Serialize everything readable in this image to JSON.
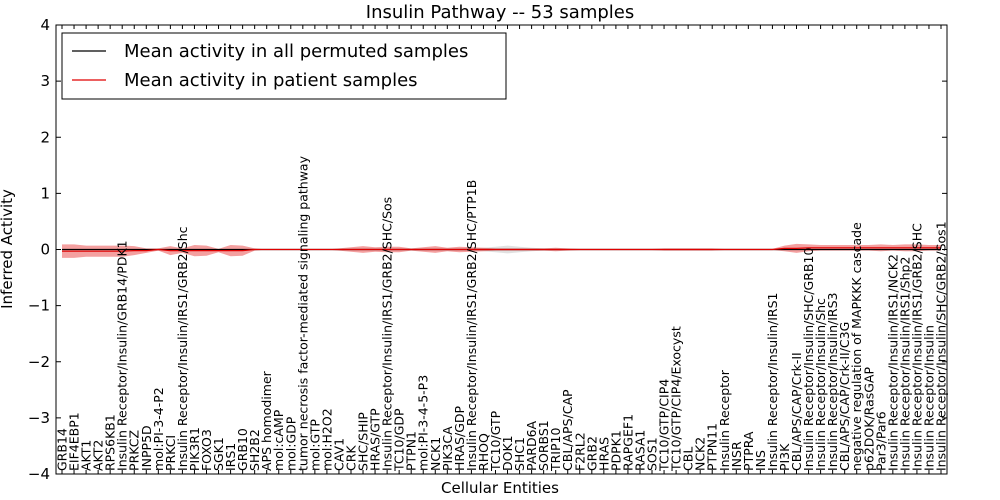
{
  "chart_data": {
    "type": "line",
    "title": "Insulin Pathway -- 53 samples",
    "xlabel": "Cellular Entities",
    "ylabel": "Inferred Activity",
    "ylim": [
      -4,
      4
    ],
    "yticks": [
      -4,
      -3,
      -2,
      -1,
      0,
      1,
      2,
      3,
      4
    ],
    "grid": false,
    "legend_position": "top-left",
    "categories": [
      "GRB14",
      "EIF4EBP1",
      "AKT1",
      "AKT2",
      "RPS6KB1",
      "Insulin Receptor/Insulin/GRB14/PDK1",
      "PRKCZ",
      "INPP5D",
      "mol:PI-3-4-P2",
      "PRKCI",
      "Insulin Receptor/Insulin/IRS1/GRB2/Shc",
      "PIK3R1",
      "FOXO3",
      "SGK1",
      "IRS1",
      "GRB10",
      "SH2B2",
      "APS homodimer",
      "mol:cAMP",
      "mol:GDP",
      "tumor necrosis factor-mediated signaling pathway",
      "mol:GTP",
      "mol:H2O2",
      "CAV1",
      "CRK",
      "SHC/SHIP",
      "HRAS/GTP",
      "Insulin Receptor/Insulin/IRS1/GRB2/SHC/Sos",
      "TC10/GDP",
      "PTPN1",
      "mol:PI-3-4-5-P3",
      "NCK1",
      "PIK3CA",
      "HRAS/GDP",
      "Insulin Receptor/Insulin/IRS1/GRB2/SHC/PTP1B",
      "RHOQ",
      "TC10/GTP",
      "DOK1",
      "SHC1",
      "PARD6A",
      "SORBS1",
      "TRIP10",
      "CBL/APS/CAP",
      "F2RL2",
      "GRB2",
      "HRAS",
      "PDPK1",
      "RAPGEF1",
      "RASA1",
      "SOS1",
      "TC10/GTP/CIP4",
      "TC10/GTP/CIP4/Exocyst",
      "CBL",
      "NCK2",
      "PTPN11",
      "Insulin Receptor",
      "INSR",
      "PTPRA",
      "INS",
      "Insulin Receptor/Insulin/IRS1",
      "PI3K",
      "CBL/APS/CAP/Crk-II",
      "Insulin Receptor/Insulin/SHC/GRB10",
      "Insulin Receptor/Insulin/Shc",
      "Insulin Receptor/Insulin/IRS3",
      "CBL/APS/CAP/Crk-II/C3G",
      "negative regulation of MAPKKK cascade",
      "p62DOK/RasGAP",
      "Par3/Par6",
      "Insulin Receptor/Insulin/IRS1/NCK2",
      "Insulin Receptor/Insulin/IRS1/Shp2",
      "Insulin Receptor/Insulin/IRS1/GRB2/SHC",
      "Insulin Receptor/Insulin",
      "Insulin Receptor/Insulin/SHC/GRB2/Sos1"
    ],
    "series": [
      {
        "name": "Mean activity in all permuted samples",
        "color": "#000000",
        "band_color": "#c8c8c8",
        "values": [
          0,
          0,
          0,
          0,
          0,
          0,
          0,
          0,
          0,
          0,
          0,
          0,
          0,
          0,
          0,
          0,
          0,
          0,
          0,
          0,
          0,
          0,
          0,
          0,
          0,
          0,
          0,
          0,
          0,
          0,
          0,
          0,
          0,
          0,
          0,
          0,
          0,
          0,
          0,
          0,
          0,
          0,
          0,
          0,
          0,
          0,
          0,
          0,
          0,
          0,
          0,
          0,
          0,
          0,
          0,
          0,
          0,
          0,
          0,
          0,
          0,
          0,
          0,
          0,
          0,
          0,
          0,
          0,
          0,
          0,
          0,
          0,
          0,
          0
        ],
        "spread": [
          0,
          0,
          0,
          0,
          0,
          0,
          0,
          0,
          0,
          0,
          0,
          0,
          0,
          0,
          0,
          0,
          0,
          0,
          0,
          0,
          0,
          0,
          0,
          0,
          0,
          0,
          0,
          0,
          0,
          0,
          0,
          0,
          0,
          0,
          0.02,
          0.03,
          0.05,
          0.07,
          0.05,
          0.03,
          0.02,
          0,
          0,
          0,
          0,
          0,
          0,
          0,
          0,
          0,
          0,
          0,
          0,
          0,
          0,
          0,
          0,
          0,
          0,
          0,
          0,
          0,
          0,
          0,
          0,
          0,
          0,
          0,
          0,
          0,
          0,
          0,
          0,
          0
        ]
      },
      {
        "name": "Mean activity in patient samples",
        "color": "#e00000",
        "band_color": "#f08080",
        "values": [
          -0.03,
          -0.03,
          -0.03,
          -0.03,
          -0.03,
          -0.03,
          -0.02,
          -0.02,
          0,
          -0.02,
          -0.02,
          -0.02,
          -0.02,
          -0.02,
          -0.02,
          -0.02,
          0,
          0,
          0,
          0,
          0,
          0,
          0,
          0,
          0,
          0,
          0,
          0,
          0,
          0,
          0,
          0,
          0,
          0,
          0,
          0,
          0,
          0,
          0,
          0,
          0,
          0,
          0,
          0,
          0,
          0,
          0,
          0,
          0,
          0,
          0,
          0,
          0,
          0,
          0,
          0,
          0,
          0,
          0,
          0,
          0.02,
          0.02,
          0.03,
          0.03,
          0.03,
          0.03,
          0.03,
          0.03,
          0.03,
          0.03,
          0.03,
          0.03,
          0.03,
          0.03
        ],
        "spread": [
          0.12,
          0.12,
          0.1,
          0.1,
          0.1,
          0.1,
          0.08,
          0.04,
          0.02,
          0.08,
          0.04,
          0.1,
          0.09,
          0.03,
          0.1,
          0.09,
          0.02,
          0,
          0,
          0,
          0,
          0,
          0,
          0.02,
          0.04,
          0.06,
          0.04,
          0.05,
          0.05,
          0.02,
          0.04,
          0.06,
          0.03,
          0.05,
          0.04,
          0.03,
          0.02,
          0.02,
          0.02,
          0.02,
          0.02,
          0.03,
          0.02,
          0.01,
          0.01,
          0.01,
          0.01,
          0.01,
          0.01,
          0.01,
          0.02,
          0.02,
          0.02,
          0.02,
          0.02,
          0.01,
          0.01,
          0.01,
          0.01,
          0.01,
          0.05,
          0.08,
          0.06,
          0.05,
          0.05,
          0.05,
          0.05,
          0.05,
          0.06,
          0.05,
          0.06,
          0.06,
          0.05,
          0.05
        ]
      }
    ]
  }
}
